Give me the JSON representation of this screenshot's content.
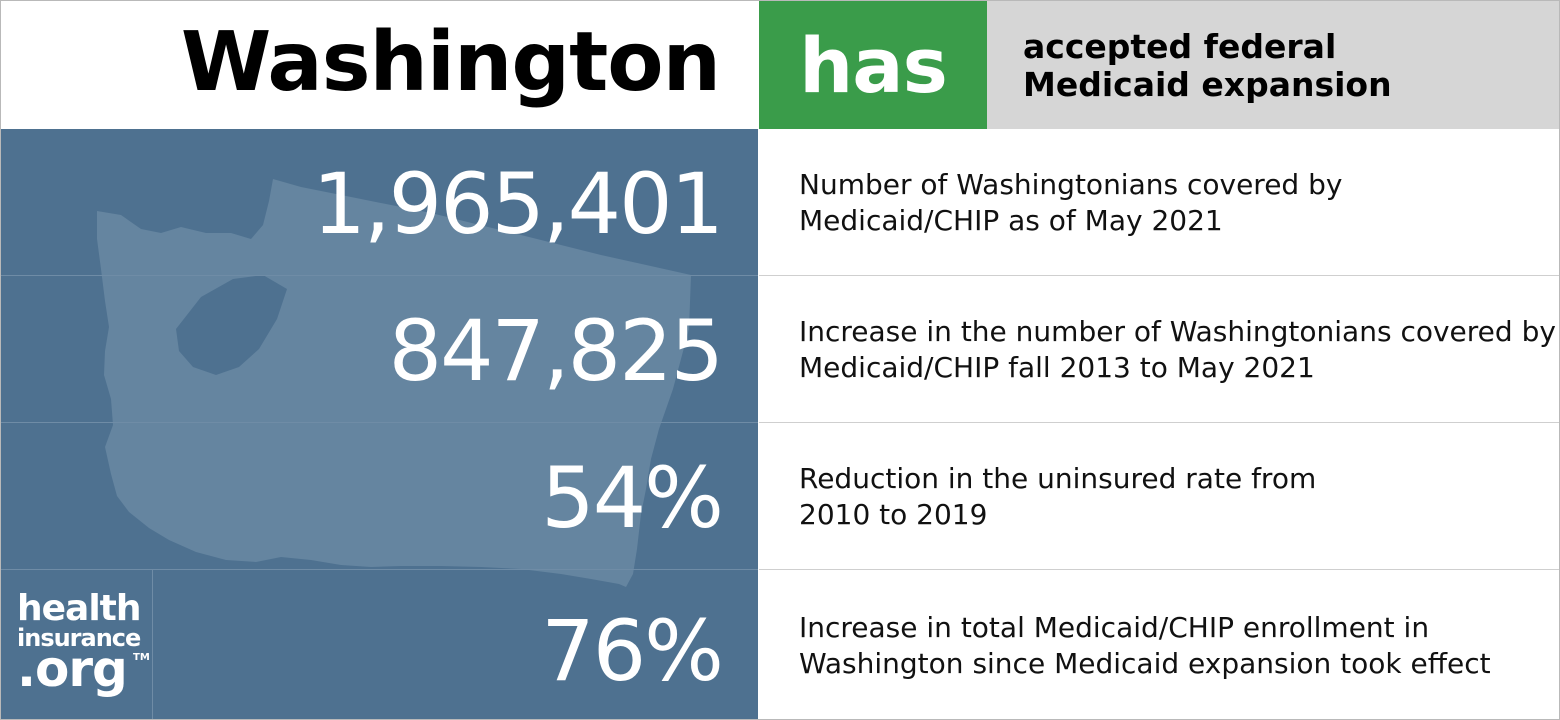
{
  "header": {
    "state": "Washington",
    "status": "has",
    "note_line1": "accepted federal",
    "note_line2": "Medicaid expansion"
  },
  "stats": [
    {
      "value": "1,965,401",
      "line1": "Number of Washingtonians covered by",
      "line2": "Medicaid/CHIP as of May 2021"
    },
    {
      "value": "847,825",
      "line1": "Increase in the number of Washingtonians covered by",
      "line2": "Medicaid/CHIP fall 2013 to May 2021"
    },
    {
      "value": "54%",
      "line1": "Reduction in the uninsured rate from",
      "line2": "2010 to 2019"
    },
    {
      "value": "76%",
      "line1": "Increase in total Medicaid/CHIP enrollment in",
      "line2": "Washington since Medicaid expansion took effect"
    }
  ],
  "logo": {
    "word1": "health",
    "word2": "insurance",
    "word3": ".org",
    "tm": "TM"
  },
  "colors": {
    "status_green": "#3a9c4a",
    "panel_blue": "#4e7190",
    "map_fill": "#6585a0",
    "note_gray": "#d6d6d6"
  },
  "icons": {
    "map": "washington-state-map-icon"
  }
}
